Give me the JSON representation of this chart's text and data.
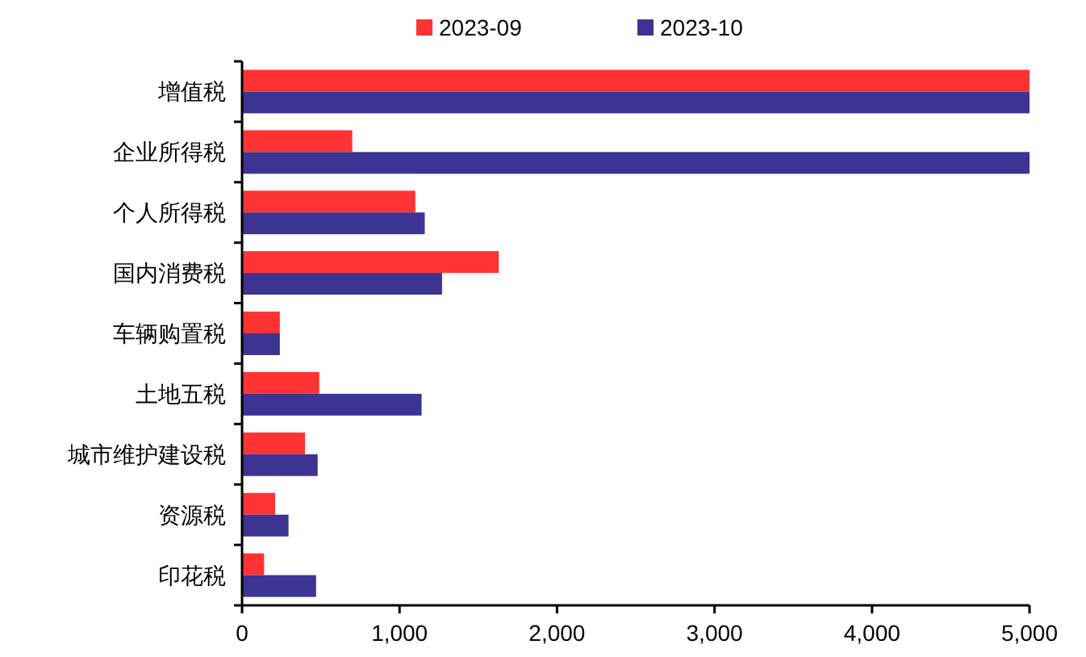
{
  "chart_data": {
    "type": "bar",
    "orientation": "horizontal",
    "categories": [
      "增值税",
      "企业所得税",
      "个人所得税",
      "国内消费税",
      "车辆购置税",
      "土地五税",
      "城市维护建设税",
      "资源税",
      "印花税"
    ],
    "series": [
      {
        "name": "2023-09",
        "color": "#ff3333",
        "values": [
          5000,
          700,
          1100,
          1630,
          240,
          490,
          400,
          210,
          140
        ]
      },
      {
        "name": "2023-10",
        "color": "#3d3393",
        "values": [
          5000,
          5000,
          1160,
          1270,
          240,
          1140,
          480,
          295,
          470
        ]
      }
    ],
    "xlim": [
      0,
      5000
    ],
    "xticks": [
      {
        "value": 0,
        "label": "0"
      },
      {
        "value": 1000,
        "label": "1,000"
      },
      {
        "value": 2000,
        "label": "2,000"
      },
      {
        "value": 3000,
        "label": "3,000"
      },
      {
        "value": 4000,
        "label": "4,000"
      },
      {
        "value": 5000,
        "label": "5,000"
      }
    ],
    "legend": "top",
    "grid": false
  }
}
